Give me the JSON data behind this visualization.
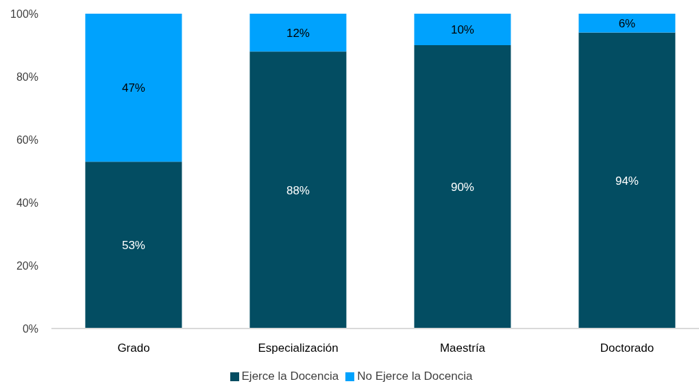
{
  "chart_data": {
    "type": "bar",
    "stacked": true,
    "categories": [
      "Grado",
      "Especialización",
      "Maestría",
      "Doctorado"
    ],
    "series": [
      {
        "name": "Ejerce la Docencia",
        "color": "#034d62",
        "values": [
          53,
          88,
          90,
          94
        ],
        "value_labels": [
          "53%",
          "88%",
          "90%",
          "94%"
        ]
      },
      {
        "name": "No Ejerce la Docencia",
        "color": "#00a2fd",
        "values": [
          47,
          12,
          10,
          6
        ],
        "value_labels": [
          "47%",
          "12%",
          "10%",
          "6%"
        ]
      }
    ],
    "ylim": [
      0,
      100
    ],
    "yticks": [
      {
        "value": 0,
        "label": "0%"
      },
      {
        "value": 20,
        "label": "20%"
      },
      {
        "value": 40,
        "label": "40%"
      },
      {
        "value": 60,
        "label": "60%"
      },
      {
        "value": 80,
        "label": "80%"
      },
      {
        "value": 100,
        "label": "100%"
      }
    ],
    "legend": "bottom"
  }
}
